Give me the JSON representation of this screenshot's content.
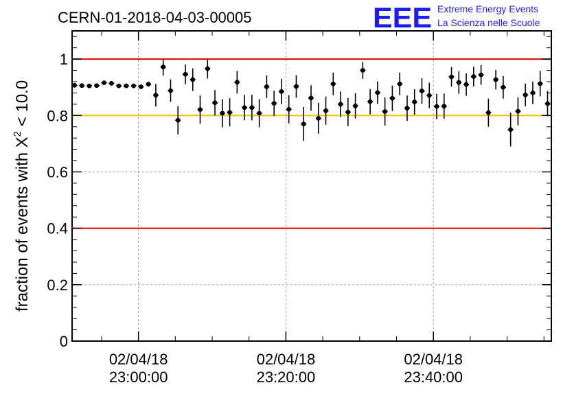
{
  "title": "CERN-01-2018-04-03-00005",
  "logo": {
    "text": "EEE",
    "line1": "Extreme Energy Events",
    "line2": "La Scienza nelle Scuole",
    "color": "#1a1aff"
  },
  "chart_data": {
    "type": "scatter",
    "title": "CERN-01-2018-04-03-00005",
    "ylabel": "fraction of events with χ² < 10.0",
    "ylabel_parts": {
      "prefix": "fraction of events with ",
      "symbol": "X",
      "sup": "2",
      "suffix": " < 10.0"
    },
    "xlabel": "",
    "ylim": [
      0,
      1.1
    ],
    "xlim": [
      "2018-04-02 22:51:00",
      "2018-04-02 23:56:00"
    ],
    "x_ticks": [
      {
        "x": "2018-04-02 23:00:00",
        "date": "02/04/18",
        "time": "23:00:00"
      },
      {
        "x": "2018-04-02 23:20:00",
        "date": "02/04/18",
        "time": "23:20:00"
      },
      {
        "x": "2018-04-02 23:40:00",
        "date": "02/04/18",
        "time": "23:40:00"
      }
    ],
    "y_ticks": [
      {
        "value": 0,
        "label": "0"
      },
      {
        "value": 0.2,
        "label": "0.2"
      },
      {
        "value": 0.4,
        "label": "0.4"
      },
      {
        "value": 0.6,
        "label": "0.6"
      },
      {
        "value": 0.8,
        "label": "0.8"
      },
      {
        "value": 1.0,
        "label": "1"
      }
    ],
    "grid": true,
    "reference_lines": [
      {
        "y": 1.0,
        "color": "#e00000"
      },
      {
        "y": 0.8,
        "color": "#f2c200"
      },
      {
        "y": 0.4,
        "color": "#e00000"
      }
    ],
    "marker_color": "#000000",
    "series": [
      {
        "values": [
          0.907,
          0.906,
          0.905,
          0.906,
          0.916,
          0.914,
          0.905,
          0.905,
          0.905,
          0.902,
          0.911,
          0.872,
          0.972,
          0.888,
          0.783,
          0.946,
          0.927,
          0.821,
          0.966,
          0.845,
          0.808,
          0.811,
          0.918,
          0.828,
          0.828,
          0.808,
          0.902,
          0.843,
          0.885,
          0.822,
          0.903,
          0.77,
          0.862,
          0.79,
          0.817,
          0.912,
          0.84,
          0.812,
          0.834,
          0.96,
          0.849,
          0.881,
          0.814,
          0.861,
          0.912,
          0.826,
          0.848,
          0.887,
          0.871,
          0.832,
          0.833,
          0.937,
          0.917,
          0.91,
          0.938,
          0.944,
          0.81,
          0.927,
          0.9,
          0.75,
          0.815,
          0.873,
          0.88,
          0.913,
          0.842
        ],
        "errors": [
          0.003,
          0.003,
          0.003,
          0.003,
          0.003,
          0.003,
          0.003,
          0.003,
          0.003,
          0.004,
          0.008,
          0.04,
          0.03,
          0.04,
          0.05,
          0.035,
          0.04,
          0.05,
          0.035,
          0.045,
          0.05,
          0.05,
          0.04,
          0.045,
          0.045,
          0.05,
          0.04,
          0.045,
          0.045,
          0.05,
          0.04,
          0.06,
          0.045,
          0.055,
          0.05,
          0.04,
          0.045,
          0.05,
          0.045,
          0.03,
          0.045,
          0.04,
          0.05,
          0.045,
          0.04,
          0.045,
          0.045,
          0.045,
          0.045,
          0.045,
          0.045,
          0.035,
          0.04,
          0.04,
          0.035,
          0.035,
          0.05,
          0.035,
          0.04,
          0.06,
          0.05,
          0.04,
          0.04,
          0.045,
          0.045
        ]
      }
    ]
  }
}
